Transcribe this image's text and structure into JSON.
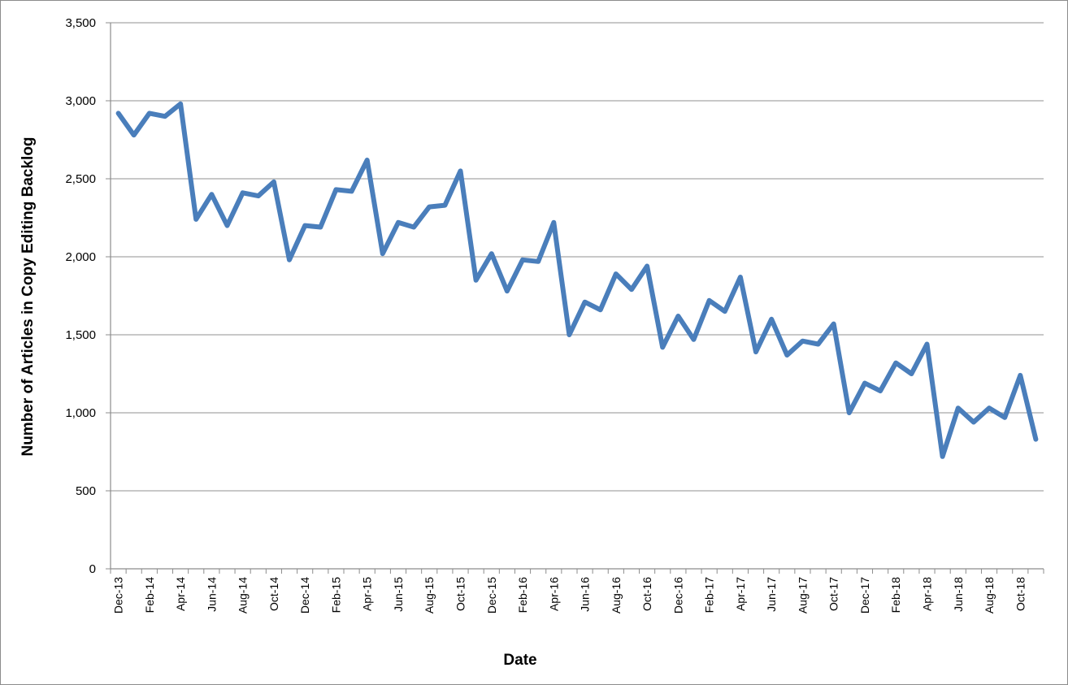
{
  "chart_data": {
    "type": "line",
    "xlabel": "Date",
    "ylabel": "Number of Articles in Copy Editing Backlog",
    "ylim": [
      0,
      3500
    ],
    "yticks": [
      0,
      500,
      1000,
      1500,
      2000,
      2500,
      3000,
      3500
    ],
    "ytick_labels": [
      "0",
      "500",
      "1,000",
      "1,500",
      "2,000",
      "2,500",
      "3,000",
      "3,500"
    ],
    "grid": true,
    "legend": "none",
    "series_color": "#4a7ebb",
    "x": [
      "Dec-13",
      "Jan-14",
      "Feb-14",
      "Mar-14",
      "Apr-14",
      "May-14",
      "Jun-14",
      "Jul-14",
      "Aug-14",
      "Sep-14",
      "Oct-14",
      "Nov-14",
      "Dec-14",
      "Jan-15",
      "Feb-15",
      "Mar-15",
      "Apr-15",
      "May-15",
      "Jun-15",
      "Jul-15",
      "Aug-15",
      "Sep-15",
      "Oct-15",
      "Nov-15",
      "Dec-15",
      "Jan-16",
      "Feb-16",
      "Mar-16",
      "Apr-16",
      "May-16",
      "Jun-16",
      "Jul-16",
      "Aug-16",
      "Sep-16",
      "Oct-16",
      "Nov-16",
      "Dec-16",
      "Jan-17",
      "Feb-17",
      "Mar-17",
      "Apr-17",
      "May-17",
      "Jun-17",
      "Jul-17",
      "Aug-17",
      "Sep-17",
      "Oct-17",
      "Nov-17",
      "Dec-17",
      "Jan-18",
      "Feb-18",
      "Mar-18",
      "Apr-18",
      "May-18",
      "Jun-18",
      "Jul-18",
      "Aug-18",
      "Sep-18",
      "Oct-18",
      "Nov-18"
    ],
    "x_tick_labels": [
      "Dec-13",
      "Feb-14",
      "Apr-14",
      "Jun-14",
      "Aug-14",
      "Oct-14",
      "Dec-14",
      "Feb-15",
      "Apr-15",
      "Jun-15",
      "Aug-15",
      "Oct-15",
      "Dec-15",
      "Feb-16",
      "Apr-16",
      "Jun-16",
      "Aug-16",
      "Oct-16",
      "Dec-16",
      "Feb-17",
      "Apr-17",
      "Jun-17",
      "Aug-17",
      "Oct-17",
      "Dec-17",
      "Feb-18",
      "Apr-18",
      "Jun-18",
      "Aug-18",
      "Oct-18"
    ],
    "series": [
      {
        "values": [
          2920,
          2780,
          2920,
          2900,
          2980,
          2240,
          2400,
          2200,
          2410,
          2390,
          2480,
          1980,
          2200,
          2190,
          2430,
          2420,
          2620,
          2020,
          2220,
          2190,
          2320,
          2330,
          2550,
          1850,
          2020,
          1780,
          1980,
          1970,
          2220,
          1500,
          1710,
          1660,
          1890,
          1790,
          1940,
          1420,
          1620,
          1470,
          1720,
          1650,
          1870,
          1390,
          1600,
          1370,
          1460,
          1440,
          1570,
          1000,
          1190,
          1140,
          1320,
          1250,
          1440,
          720,
          1030,
          940,
          1030,
          970,
          1240,
          830
        ]
      }
    ]
  }
}
